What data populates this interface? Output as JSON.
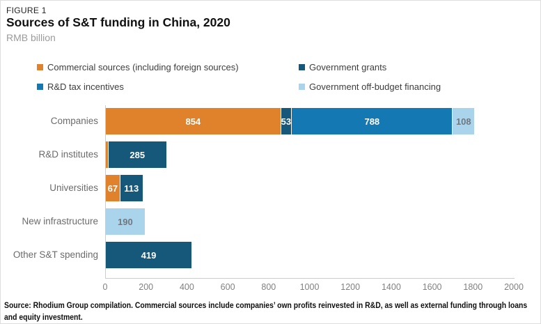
{
  "header": {
    "figure_label": "FIGURE 1",
    "title": "Sources of S&T funding in China, 2020",
    "subtitle": "RMB billion"
  },
  "legend": [
    {
      "label": "Commercial sources (including foreign sources)",
      "color": "#E0812C"
    },
    {
      "label": "Government grants",
      "color": "#15587A"
    },
    {
      "label": "R&D tax incentives",
      "color": "#1478B2"
    },
    {
      "label": "Government off-budget financing",
      "color": "#A9D4EC"
    }
  ],
  "chart_data": {
    "type": "bar",
    "orientation": "horizontal",
    "stacked": true,
    "title": "Sources of S&T funding in China, 2020",
    "unit": "RMB billion",
    "grid": false,
    "legend_position": "top",
    "categories": [
      "Companies",
      "R&D institutes",
      "Universities",
      "New infrastructure",
      "Other S&T spending"
    ],
    "series": [
      {
        "name": "Commercial sources (including foreign sources)",
        "color": "#E0812C",
        "label_color": "#ffffff",
        "values": [
          854,
          10,
          67,
          0,
          0
        ],
        "labels": [
          "854",
          "",
          "67",
          "",
          ""
        ]
      },
      {
        "name": "Government grants",
        "color": "#15587A",
        "label_color": "#ffffff",
        "values": [
          53,
          285,
          113,
          0,
          419
        ],
        "labels": [
          "53",
          "285",
          "113",
          "",
          "419"
        ]
      },
      {
        "name": "R&D tax incentives",
        "color": "#1478B2",
        "label_color": "#ffffff",
        "values": [
          788,
          0,
          0,
          0,
          0
        ],
        "labels": [
          "788",
          "",
          "",
          "",
          ""
        ]
      },
      {
        "name": "Government off-budget financing",
        "color": "#A9D4EC",
        "label_color": "#6F7880",
        "values": [
          108,
          0,
          0,
          190,
          0
        ],
        "labels": [
          "108",
          "",
          "",
          "190",
          ""
        ]
      }
    ],
    "x_ticks": [
      0,
      200,
      400,
      600,
      800,
      1000,
      1200,
      1400,
      1600,
      1800,
      2000
    ],
    "xlim": [
      0,
      2000
    ],
    "xlabel": "",
    "ylabel": ""
  },
  "footer": {
    "source": "Source: Rhodium Group compilation. Commercial sources include companies’ own profits reinvested in R&D, as well as external funding through loans and equity investment."
  },
  "layout_colors": {
    "axis_line": "#cccccc",
    "tick_text": "#808080",
    "category_text": "#6b6b6b"
  }
}
